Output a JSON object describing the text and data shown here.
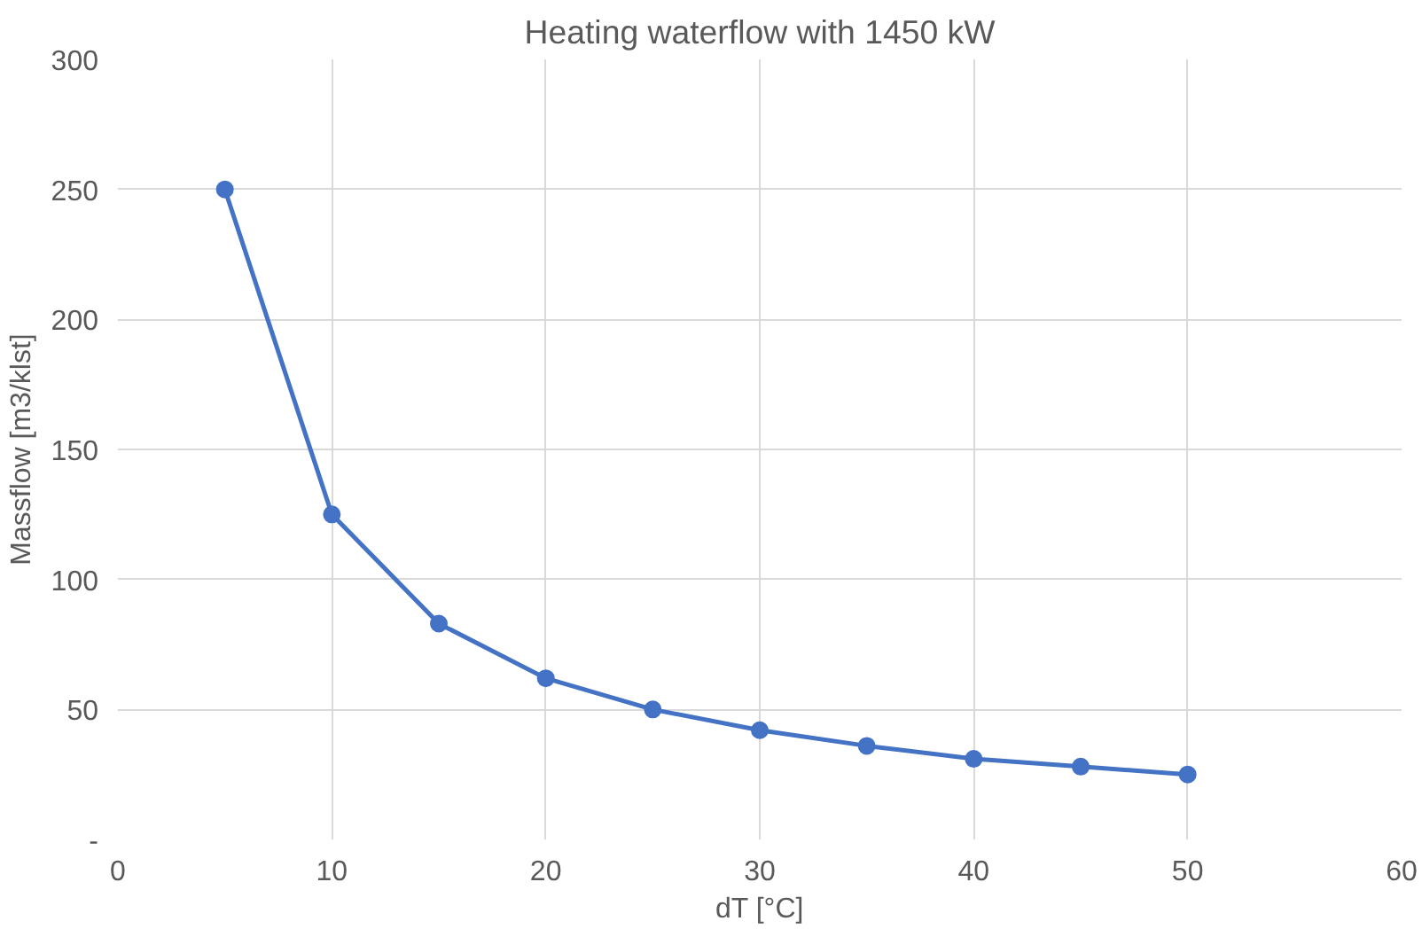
{
  "chart_data": {
    "type": "line",
    "title": "Heating waterflow with 1450 kW",
    "xlabel": "dT [°C]",
    "ylabel": "Massflow [m3/klst]",
    "x": [
      5,
      10,
      15,
      20,
      25,
      30,
      35,
      40,
      45,
      50
    ],
    "series": [
      {
        "color": "#4472c4",
        "values": [
          250,
          125,
          83,
          62,
          50,
          42,
          36,
          31,
          28,
          25
        ]
      }
    ],
    "xlim": [
      0,
      60
    ],
    "xticks": [
      0,
      10,
      20,
      30,
      40,
      50,
      60
    ],
    "ylim": [
      0,
      300
    ],
    "yticks": [
      {
        "value": 0,
        "label": "-"
      },
      50,
      100,
      150,
      200,
      250,
      300
    ],
    "grid": true,
    "marker": "circle",
    "line_style": "solid"
  }
}
